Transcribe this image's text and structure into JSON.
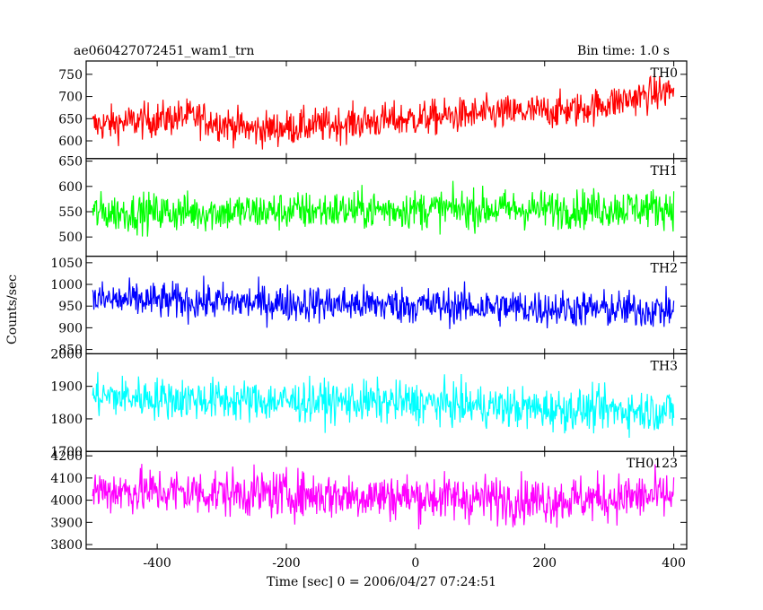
{
  "chart_data": {
    "type": "line",
    "title_left": "ae060427072451_wam1_trn",
    "title_right": "Bin time: 1.0 s",
    "xlabel": "Time [sec] 0 = 2006/04/27 07:24:51",
    "ylabel": "Counts/sec",
    "xlim": [
      -510,
      420
    ],
    "x_ticks": [
      -400,
      -200,
      0,
      200,
      400
    ],
    "x_range": [
      -500,
      400
    ],
    "bin_time": 1.0,
    "grid": false,
    "panels": [
      {
        "name": "TH0",
        "color": "#ff0000",
        "ylim": [
          560,
          780
        ],
        "yticks": [
          600,
          650,
          700,
          750
        ],
        "trend": [
          [
            -500,
            635
          ],
          [
            -350,
            655
          ],
          [
            -250,
            625
          ],
          [
            -100,
            640
          ],
          [
            0,
            650
          ],
          [
            100,
            660
          ],
          [
            250,
            670
          ],
          [
            350,
            700
          ],
          [
            400,
            715
          ]
        ],
        "noise": 28
      },
      {
        "name": "TH1",
        "color": "#00ff00",
        "ylim": [
          462,
          655
        ],
        "yticks": [
          500,
          550,
          600,
          650
        ],
        "trend": [
          [
            -500,
            548
          ],
          [
            -250,
            550
          ],
          [
            0,
            555
          ],
          [
            200,
            555
          ],
          [
            400,
            558
          ]
        ],
        "noise": 27
      },
      {
        "name": "TH2",
        "color": "#0000ff",
        "ylim": [
          840,
          1065
        ],
        "yticks": [
          850,
          900,
          950,
          1000,
          1050
        ],
        "trend": [
          [
            -500,
            965
          ],
          [
            -250,
            958
          ],
          [
            0,
            952
          ],
          [
            200,
            945
          ],
          [
            400,
            940
          ]
        ],
        "noise": 30
      },
      {
        "name": "TH3",
        "color": "#00ffff",
        "ylim": [
          1700,
          2000
        ],
        "yticks": [
          1700,
          1800,
          1900,
          2000
        ],
        "trend": [
          [
            -500,
            1870
          ],
          [
            -250,
            1855
          ],
          [
            0,
            1850
          ],
          [
            200,
            1830
          ],
          [
            400,
            1825
          ]
        ],
        "noise": 45
      },
      {
        "name": "TH0123",
        "color": "#ff00ff",
        "ylim": [
          3780,
          4220
        ],
        "yticks": [
          3800,
          3900,
          4000,
          4100,
          4200
        ],
        "trend": [
          [
            -500,
            4045
          ],
          [
            -250,
            4030
          ],
          [
            0,
            4015
          ],
          [
            200,
            4000
          ],
          [
            400,
            4020
          ]
        ],
        "noise": 75
      }
    ]
  }
}
